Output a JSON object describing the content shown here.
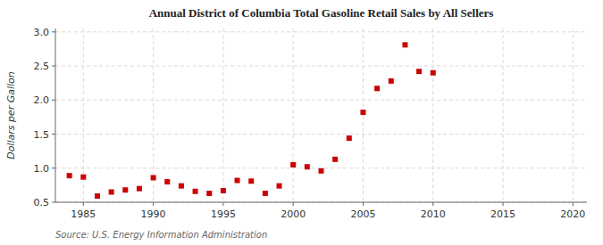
{
  "chart_data": {
    "type": "scatter",
    "title": "Annual District of Columbia Total Gasoline Retail Sales by All Sellers",
    "y_label": "Dollars per Gallon",
    "source": "Source: U.S. Energy Information Administration",
    "color": "#cc0000",
    "marker": "square",
    "grid": true,
    "xlim": [
      1983,
      2021
    ],
    "ylim": [
      0.5,
      3.05
    ],
    "xticks": [
      1985,
      1990,
      1995,
      2000,
      2005,
      2010,
      2015,
      2020
    ],
    "yticks": [
      0.5,
      {
        "value": 1.0,
        "label": "1.0"
      },
      1.5,
      {
        "value": 2.0,
        "label": "2.0"
      },
      2.5,
      {
        "value": 3.0,
        "label": "3.0"
      }
    ],
    "x": [
      1984,
      1985,
      1986,
      1987,
      1988,
      1989,
      1990,
      1991,
      1992,
      1993,
      1994,
      1995,
      1996,
      1997,
      1998,
      1999,
      2000,
      2001,
      2002,
      2003,
      2004,
      2005,
      2006,
      2007,
      2008,
      2009,
      2010
    ],
    "values": [
      0.89,
      0.87,
      0.59,
      0.65,
      0.68,
      0.7,
      0.86,
      0.8,
      0.74,
      0.66,
      0.63,
      0.67,
      0.82,
      0.81,
      0.63,
      0.74,
      1.05,
      1.02,
      0.96,
      1.13,
      1.44,
      1.82,
      2.17,
      2.28,
      2.81,
      2.42,
      2.4
    ]
  }
}
